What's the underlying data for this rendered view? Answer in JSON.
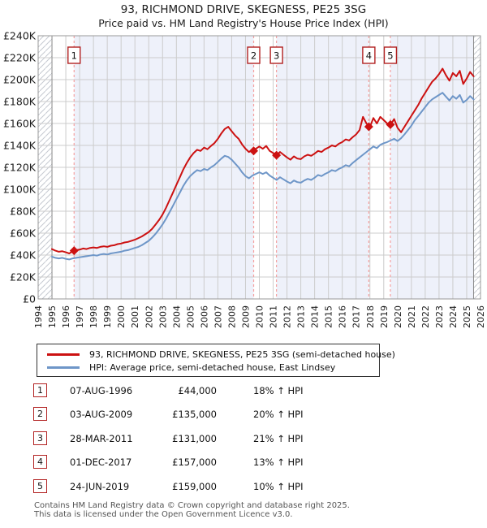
{
  "title": "93, RICHMOND DRIVE, SKEGNESS, PE25 3SG",
  "subtitle": "Price paid vs. HM Land Registry's House Price Index (HPI)",
  "sales": [
    {
      "num": "1",
      "date": "07-AUG-1996",
      "price": "£44,000",
      "pct": "18% ↑ HPI",
      "year": 1996.6,
      "value_k": 44
    },
    {
      "num": "2",
      "date": "03-AUG-2009",
      "price": "£135,000",
      "pct": "20% ↑ HPI",
      "year": 2009.59,
      "value_k": 135
    },
    {
      "num": "3",
      "date": "28-MAR-2011",
      "price": "£131,000",
      "pct": "21% ↑ HPI",
      "year": 2011.24,
      "value_k": 131
    },
    {
      "num": "4",
      "date": "01-DEC-2017",
      "price": "£157,000",
      "pct": "13% ↑ HPI",
      "year": 2017.92,
      "value_k": 157
    },
    {
      "num": "5",
      "date": "24-JUN-2019",
      "price": "£159,000",
      "pct": "10% ↑ HPI",
      "year": 2019.48,
      "value_k": 159
    }
  ],
  "footer": {
    "line1": "Contains HM Land Registry data © Crown copyright and database right 2025.",
    "line2": "This data is licensed under the Open Government Licence v3.0."
  },
  "chart_data": {
    "type": "line",
    "x_range": [
      1994,
      2026
    ],
    "y_range": [
      0,
      240
    ],
    "y_unit": "GBP thousands",
    "x_ticks": [
      1994,
      1995,
      1996,
      1997,
      1998,
      1999,
      2000,
      2001,
      2002,
      2003,
      2004,
      2005,
      2006,
      2007,
      2008,
      2009,
      2010,
      2011,
      2012,
      2013,
      2014,
      2015,
      2016,
      2017,
      2018,
      2019,
      2020,
      2021,
      2022,
      2023,
      2024,
      2025,
      2026
    ],
    "y_ticks": {
      "values": [
        0,
        20,
        40,
        60,
        80,
        100,
        120,
        140,
        160,
        180,
        200,
        220,
        240
      ],
      "labels": [
        "£0",
        "£20K",
        "£40K",
        "£60K",
        "£80K",
        "£100K",
        "£120K",
        "£140K",
        "£160K",
        "£180K",
        "£200K",
        "£220K",
        "£240K"
      ]
    },
    "grid": true,
    "legend_position": "bottom",
    "x_start": 1995.0,
    "x_step": 0.25,
    "data_bounds": [
      1995.0,
      2025.5
    ],
    "bands": [
      [
        1996.6,
        2009.59
      ],
      [
        2011.24,
        2017.92
      ],
      [
        2019.48,
        2025.5
      ]
    ],
    "no_data_hatch": [
      [
        1994,
        1995.0
      ],
      [
        2025.5,
        2026
      ]
    ],
    "colors": {
      "property": "#cc1111",
      "hpi": "#6e96c8",
      "band": "#eef1fa",
      "grid": "#cccccc",
      "sale_line": "#f4a0a0",
      "border": "#999999",
      "hatch": "#c5c9d1",
      "badge_border": "#b22222"
    },
    "series": [
      {
        "id": "property",
        "name": "93, RICHMOND DRIVE, SKEGNESS, PE25 3SG (semi-detached house)",
        "color": "#cc1111",
        "values": [
          45.5,
          44,
          43,
          43.5,
          42.5,
          41.5,
          43.5,
          44.5,
          45,
          46,
          45.5,
          46.5,
          47,
          46.5,
          47.5,
          48,
          47.5,
          48.5,
          49,
          50,
          50.5,
          51.5,
          52,
          53,
          54,
          55.5,
          57,
          59,
          61,
          64,
          68,
          72,
          77,
          83,
          90,
          97,
          104,
          111,
          118,
          124,
          129,
          133,
          136,
          135,
          138,
          136.5,
          139.5,
          142,
          146,
          151,
          155,
          157,
          153,
          149,
          146,
          141,
          137,
          134,
          135.5,
          137,
          139,
          137,
          139.5,
          135,
          133,
          131,
          134,
          131.5,
          129,
          127,
          130,
          128,
          127.5,
          130,
          131.5,
          130.5,
          132.5,
          135,
          134,
          136.5,
          138,
          140,
          139,
          141.5,
          143,
          145.5,
          144.5,
          147.5,
          150,
          154,
          166,
          160,
          157,
          165,
          160,
          166,
          163,
          160,
          159,
          164,
          156,
          152,
          157,
          162,
          167,
          172,
          177,
          183,
          188,
          193,
          198,
          201,
          205,
          210,
          204,
          199,
          206,
          203,
          208,
          196,
          201,
          207,
          203
        ]
      },
      {
        "id": "hpi",
        "name": "HPI: Average price, semi-detached house, East Lindsey",
        "color": "#6e96c8",
        "values": [
          38.5,
          37.5,
          37,
          37.5,
          36.5,
          36,
          37,
          37.5,
          38,
          38.5,
          39,
          39.5,
          40,
          39.5,
          40.5,
          41,
          40.5,
          41.5,
          42,
          42.5,
          43,
          44,
          44.5,
          45.5,
          46.5,
          47.5,
          49,
          51,
          53,
          56,
          59.5,
          63.5,
          68,
          73,
          79,
          85,
          91,
          97,
          103,
          108,
          112,
          115,
          117.5,
          116.5,
          118.5,
          117.5,
          120,
          122,
          125,
          128,
          130.5,
          129.5,
          127,
          123.5,
          120,
          115.5,
          112,
          110,
          112.5,
          114,
          115.5,
          114,
          115.5,
          112.5,
          110.5,
          108.5,
          111,
          109,
          107,
          105.5,
          108,
          106.5,
          106,
          108,
          109.5,
          108.5,
          110.5,
          113,
          112,
          114,
          115.5,
          117.5,
          116.5,
          118.5,
          120,
          122,
          121,
          124,
          126.5,
          129,
          131.5,
          134,
          136.5,
          139,
          137.5,
          140.5,
          142,
          143,
          144.5,
          146,
          144,
          146.5,
          150,
          154,
          158,
          163,
          167,
          171,
          175,
          179,
          182,
          184,
          186,
          188,
          184.5,
          181,
          185,
          182.5,
          186,
          179,
          181.5,
          185,
          182
        ]
      }
    ]
  }
}
